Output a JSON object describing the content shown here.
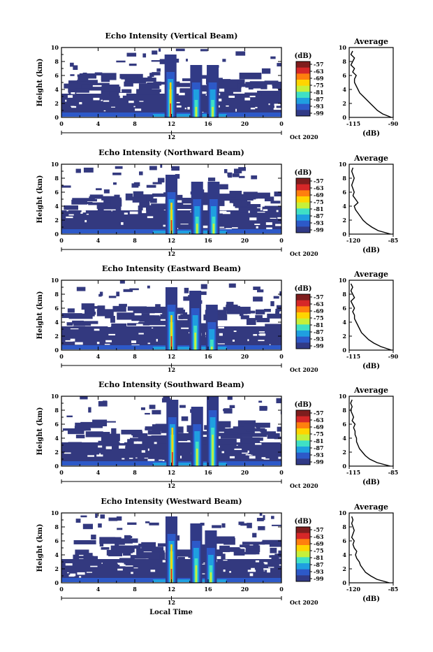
{
  "chart_data": {
    "type": "heatmap",
    "x_label": "Local Time",
    "x_ticks": [
      "0",
      "4",
      "8",
      "12",
      "16",
      "20",
      "0"
    ],
    "date_tick": "12",
    "date_label": "Oct 2020",
    "y_label": "Height (km)",
    "y_ticks": [
      "0",
      "2",
      "4",
      "6",
      "8",
      "10"
    ],
    "ylim": [
      0,
      10
    ],
    "colorbar_unit": "(dB)",
    "colorbar_ticks": [
      "-57",
      "-63",
      "-69",
      "-75",
      "-81",
      "-87",
      "-93",
      "-99"
    ],
    "average_title": "Average",
    "average_xlabel": "(dB)",
    "average_height": [
      0,
      0.5,
      1,
      1.5,
      2,
      2.5,
      3,
      3.5,
      4,
      4.5,
      5,
      5.5,
      6,
      6.5,
      7,
      7.5,
      8,
      8.5,
      9,
      9.5
    ],
    "panels": [
      {
        "title": "Echo Intensity (Vertical Beam)",
        "avg_xlim": [
          "-115",
          "-90"
        ],
        "avg_profile_db": [
          -91,
          -96,
          -99,
          -101,
          -103,
          -105,
          -107,
          -109,
          -110,
          -111,
          -112,
          -112,
          -111,
          -113,
          -112,
          -114,
          -113,
          -112,
          -114,
          -113
        ],
        "echo": {
          "tall": [
            11.9,
            14.7,
            16.5
          ],
          "tall_tops": [
            6.5,
            5,
            5
          ]
        }
      },
      {
        "title": "Echo Intensity (Northward Beam)",
        "avg_xlim": [
          "-120",
          "-85"
        ],
        "avg_profile_db": [
          -87,
          -97,
          -102,
          -106,
          -109,
          -111,
          -113,
          -115,
          -116,
          -113,
          -115,
          -117,
          -116,
          -117,
          -118,
          -117,
          -116,
          -117,
          -118,
          -117
        ],
        "echo": {
          "tall": [
            12.0,
            14.8,
            16.6
          ],
          "tall_tops": [
            6,
            5,
            5
          ]
        }
      },
      {
        "title": "Echo Intensity (Eastward Beam)",
        "avg_xlim": [
          "-115",
          "-90"
        ],
        "avg_profile_db": [
          -91,
          -97,
          -101,
          -104,
          -106,
          -108,
          -109,
          -110,
          -111,
          -112,
          -112,
          -113,
          -112,
          -113,
          -114,
          -112,
          -113,
          -114,
          -113,
          -114
        ],
        "echo": {
          "tall": [
            12.0,
            14.6,
            16.4
          ],
          "tall_tops": [
            6.5,
            6,
            4
          ]
        }
      },
      {
        "title": "Echo Intensity (Southward Beam)",
        "avg_xlim": [
          "-115",
          "-85"
        ],
        "avg_profile_db": [
          -87,
          -96,
          -101,
          -104,
          -106,
          -108,
          -109,
          -110,
          -110,
          -111,
          -111,
          -112,
          -111,
          -113,
          -112,
          -113,
          -114,
          -113,
          -114,
          -113
        ],
        "echo": {
          "tall": [
            12.1,
            14.8,
            16.5
          ],
          "tall_tops": [
            7,
            6,
            8
          ]
        }
      },
      {
        "title": "Echo Intensity (Westward Beam)",
        "avg_xlim": [
          "-120",
          "-85"
        ],
        "avg_profile_db": [
          -88,
          -98,
          -103,
          -107,
          -109,
          -111,
          -112,
          -114,
          -115,
          -114,
          -116,
          -117,
          -116,
          -118,
          -117,
          -116,
          -117,
          -118,
          -117,
          -118
        ],
        "echo": {
          "tall": [
            12.0,
            14.7,
            16.3
          ],
          "tall_tops": [
            7,
            6,
            5
          ]
        }
      }
    ]
  }
}
